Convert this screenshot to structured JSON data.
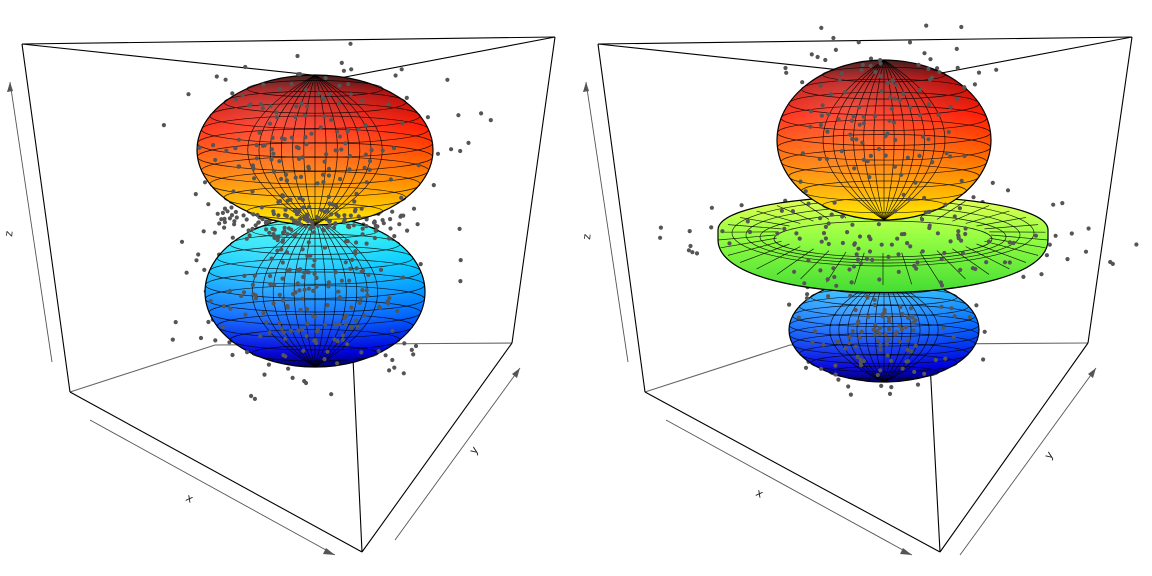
{
  "panels": [
    {
      "id": "left",
      "axis_labels": {
        "x": "x",
        "y": "y",
        "z": "z"
      },
      "lobes": [
        {
          "name": "upper-lobe",
          "colors": [
            "#000000",
            "#ff0000",
            "#ff8800",
            "#ffff00"
          ]
        },
        {
          "name": "lower-lobe",
          "colors": [
            "#00ffff",
            "#00aaff",
            "#0000ff",
            "#000066"
          ]
        }
      ]
    },
    {
      "id": "right",
      "axis_labels": {
        "x": "x",
        "y": "y",
        "z": "z"
      },
      "lobes": [
        {
          "name": "upper-lobe",
          "colors": [
            "#000000",
            "#ff0000",
            "#ff8800",
            "#ffff00"
          ]
        },
        {
          "name": "torus-ring",
          "colors": [
            "#ccff33",
            "#88ff44",
            "#55ee33"
          ]
        },
        {
          "name": "lower-lobe",
          "colors": [
            "#00aaff",
            "#0055ff",
            "#0000cc"
          ]
        }
      ]
    }
  ],
  "point_color": "#555555"
}
